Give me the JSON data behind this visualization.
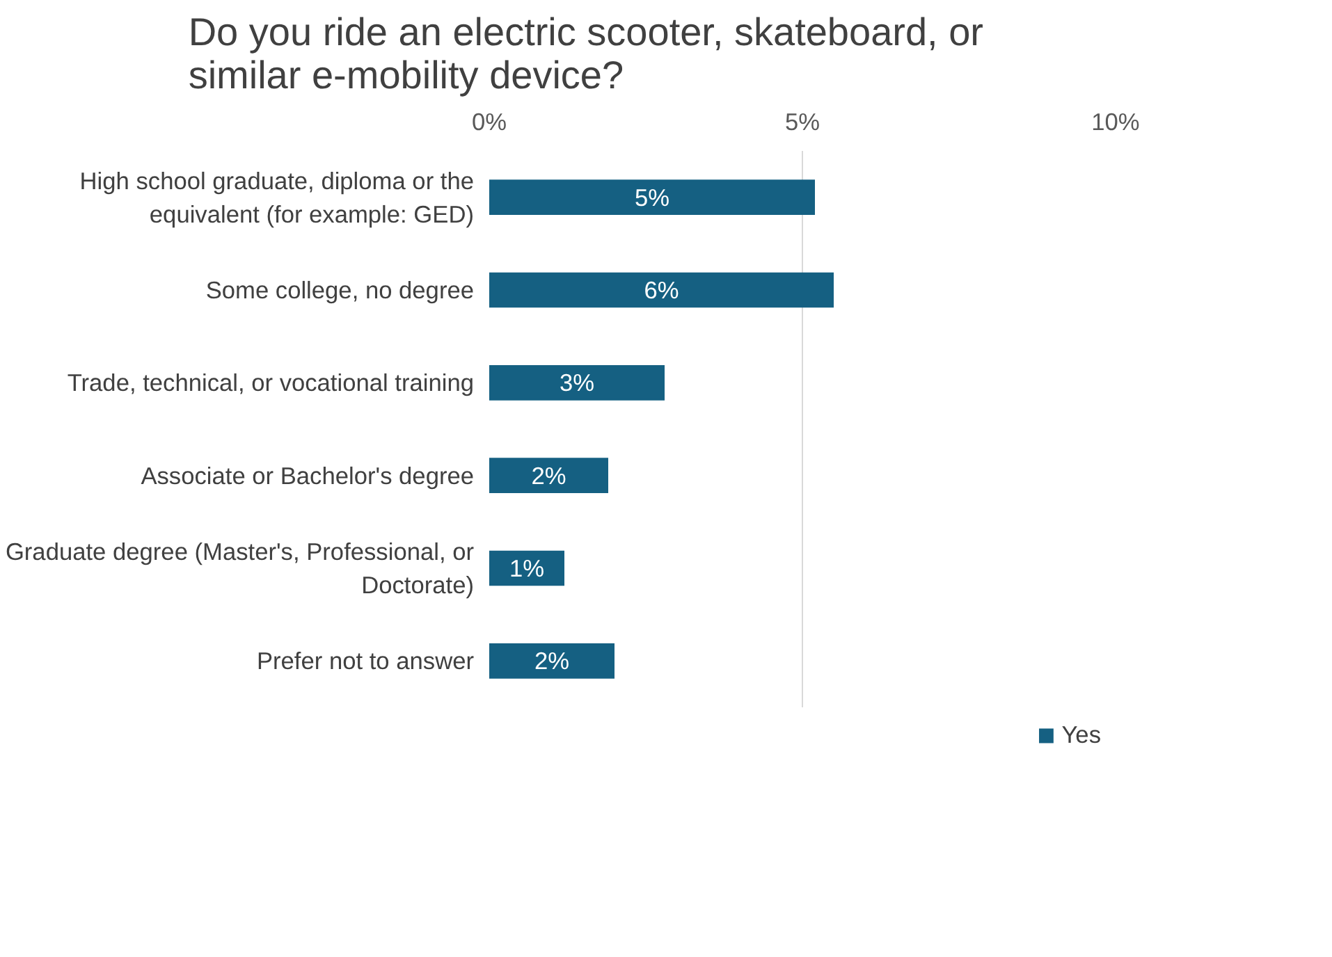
{
  "chart_data": {
    "type": "bar",
    "orientation": "horizontal",
    "title": "Do you ride an electric scooter, skateboard, or similar e-mobility device?",
    "categories": [
      "High school graduate, diploma or the equivalent (for example: GED)",
      "Some college, no degree",
      "Trade, technical, or vocational training",
      "Associate or Bachelor's degree",
      "Graduate degree (Master's, Professional, or Doctorate)",
      "Prefer not to answer"
    ],
    "series": [
      {
        "name": "Yes",
        "color": "#156082",
        "values": [
          5.2,
          5.5,
          2.8,
          1.9,
          1.2,
          2.0
        ],
        "value_labels": [
          "5%",
          "6%",
          "3%",
          "2%",
          "1%",
          "2%"
        ]
      }
    ],
    "xlim": [
      0,
      10
    ],
    "xticks": [
      {
        "value": 0,
        "label": "0%"
      },
      {
        "value": 5,
        "label": "5%"
      },
      {
        "value": 10,
        "label": "10%"
      }
    ],
    "grid": "x",
    "legend": "bottom"
  }
}
